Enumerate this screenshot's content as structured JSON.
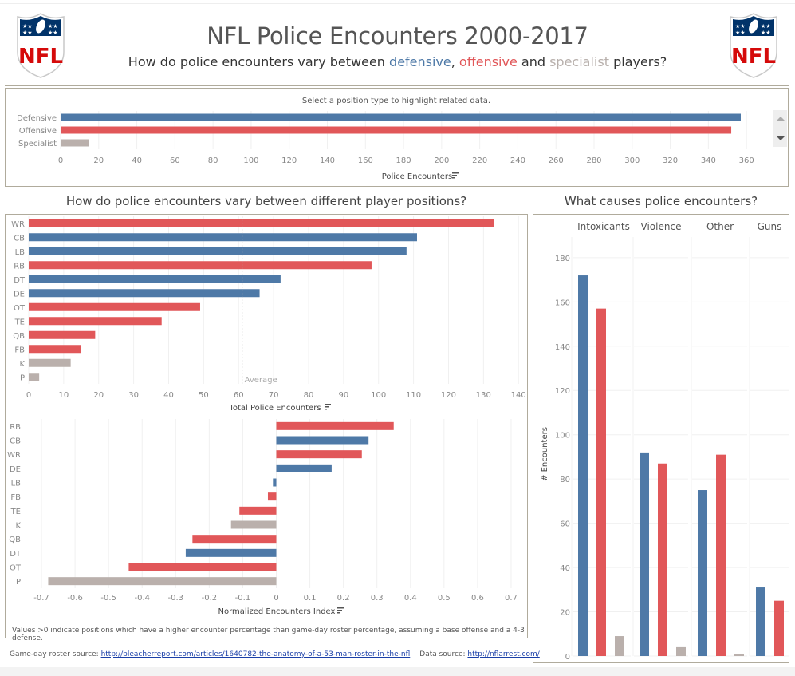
{
  "header": {
    "title": "NFL Police Encounters 2000-2017",
    "subtitle_prefix": "How do police encounters vary between ",
    "subtitle_def": "defensive",
    "subtitle_sep": ", ",
    "subtitle_off": "offensive",
    "subtitle_and": " and ",
    "subtitle_spec": "specialist",
    "subtitle_suffix": " players?",
    "logo_text": "NFL"
  },
  "colors": {
    "defensive": "#4e79a7",
    "offensive": "#e15759",
    "specialist": "#bab0ac",
    "grid": "#f0f0f0",
    "axis_text": "#888888"
  },
  "footer": {
    "roster_label": "Game-day roster source: ",
    "roster_link": "http://bleacherreport.com/articles/1640782-the-anatomy-of-a-53-man-roster-in-the-nfl",
    "data_label": "Data source: ",
    "data_link": "http://nflarrest.com/"
  },
  "chart_data": [
    {
      "id": "position-type",
      "type": "bar",
      "orientation": "horizontal",
      "title": "Select a position type to highlight related data.",
      "categories": [
        "Defensive",
        "Offensive",
        "Specialist"
      ],
      "groups": [
        "defensive",
        "offensive",
        "specialist"
      ],
      "values": [
        357,
        352,
        15
      ],
      "xlabel": "Police Encounters",
      "xlim": [
        0,
        375
      ],
      "xticks": [
        0,
        20,
        40,
        60,
        80,
        100,
        120,
        140,
        160,
        180,
        200,
        220,
        240,
        260,
        280,
        300,
        320,
        340,
        360
      ],
      "grid": true
    },
    {
      "id": "positions-total",
      "type": "bar",
      "orientation": "horizontal",
      "title": "How do police encounters vary between different player positions?",
      "categories": [
        "WR",
        "CB",
        "LB",
        "RB",
        "DT",
        "DE",
        "OT",
        "TE",
        "QB",
        "FB",
        "K",
        "P"
      ],
      "groups": [
        "offensive",
        "defensive",
        "defensive",
        "offensive",
        "defensive",
        "defensive",
        "offensive",
        "offensive",
        "offensive",
        "offensive",
        "specialist",
        "specialist"
      ],
      "values": [
        133,
        111,
        108,
        98,
        72,
        66,
        49,
        38,
        19,
        15,
        12,
        3
      ],
      "reference_line": {
        "label": "Average",
        "value": 61
      },
      "xlabel": "Total Police Encounters",
      "xlim": [
        0,
        142
      ],
      "xticks": [
        0,
        10,
        20,
        30,
        40,
        50,
        60,
        70,
        80,
        90,
        100,
        110,
        120,
        130,
        140
      ],
      "grid": true
    },
    {
      "id": "positions-normalized",
      "type": "bar",
      "orientation": "horizontal",
      "categories": [
        "RB",
        "CB",
        "WR",
        "DE",
        "LB",
        "FB",
        "TE",
        "K",
        "QB",
        "DT",
        "OT",
        "P"
      ],
      "groups": [
        "offensive",
        "defensive",
        "offensive",
        "defensive",
        "defensive",
        "offensive",
        "offensive",
        "specialist",
        "offensive",
        "defensive",
        "offensive",
        "specialist"
      ],
      "values": [
        0.35,
        0.275,
        0.255,
        0.165,
        -0.01,
        -0.025,
        -0.11,
        -0.135,
        -0.25,
        -0.27,
        -0.44,
        -0.68
      ],
      "xlabel": "Normalized Encounters Index",
      "xlim": [
        -0.75,
        0.75
      ],
      "xticks": [
        -0.7,
        -0.6,
        -0.5,
        -0.4,
        -0.3,
        -0.2,
        -0.1,
        0.0,
        0.1,
        0.2,
        0.3,
        0.4,
        0.5,
        0.6,
        0.7
      ],
      "note": "Values >0 indicate positions which have a higher encounter percentage than game-day roster percentage, assuming a base offense and a 4-3 defense.",
      "grid": true
    },
    {
      "id": "causes",
      "type": "bar",
      "orientation": "vertical",
      "title": "What causes police encounters?",
      "categories": [
        "Intoxicants",
        "Violence",
        "Other",
        "Guns"
      ],
      "series": [
        {
          "name": "Defensive",
          "group": "defensive",
          "values": [
            172,
            92,
            75,
            31
          ]
        },
        {
          "name": "Offensive",
          "group": "offensive",
          "values": [
            157,
            87,
            91,
            25
          ]
        },
        {
          "name": "Specialist",
          "group": "specialist",
          "values": [
            9,
            4,
            1,
            0
          ]
        }
      ],
      "ylabel": "# Encounters",
      "ylim": [
        0,
        185
      ],
      "yticks": [
        0,
        20,
        40,
        60,
        80,
        100,
        120,
        140,
        160,
        180
      ],
      "grid": true
    }
  ]
}
